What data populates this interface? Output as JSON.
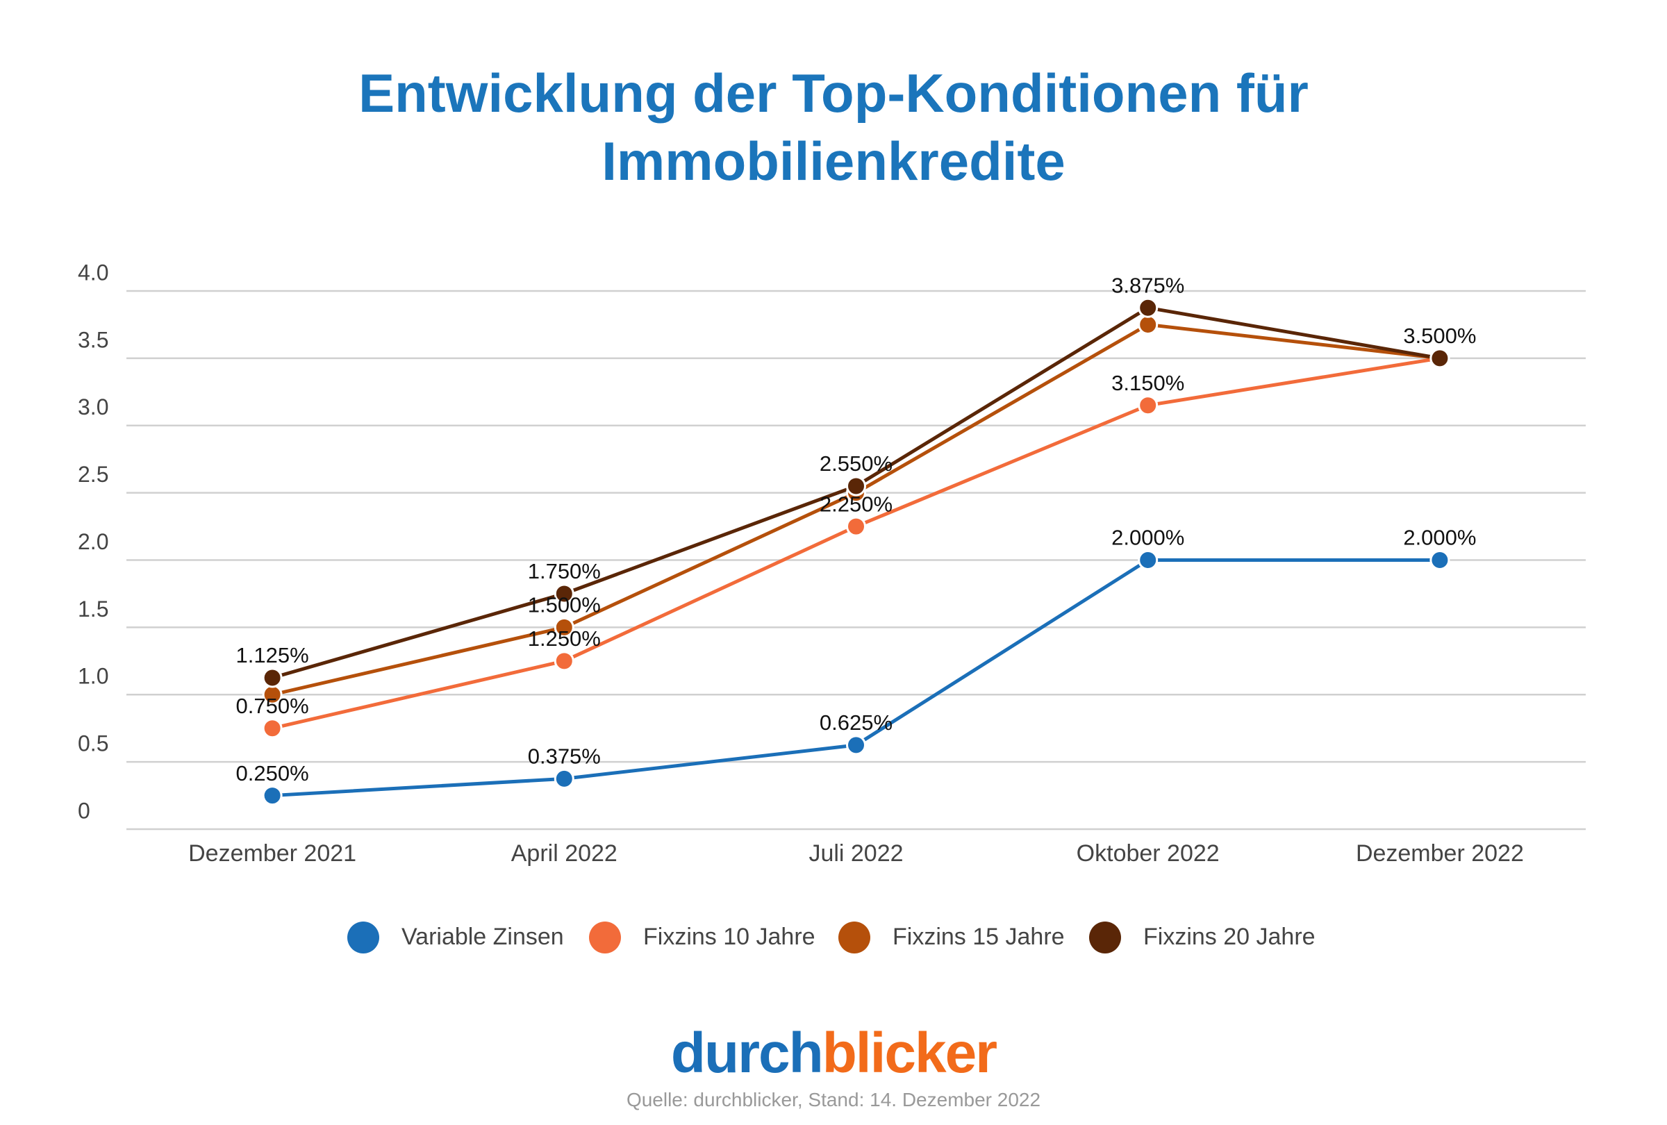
{
  "chart_data": {
    "type": "line",
    "title": "Entwicklung der Top-Konditionen für Immobilienkredite",
    "categories": [
      "Dezember 2021",
      "April 2022",
      "Juli 2022",
      "Oktober 2022",
      "Dezember 2022"
    ],
    "series": [
      {
        "name": "Variable Zinsen",
        "color": "#1b6fb8",
        "values": [
          0.25,
          0.375,
          0.625,
          2.0,
          2.0
        ],
        "value_labels": [
          "0.250%",
          "0.375%",
          "0.625%",
          "2.000%",
          "2.000%"
        ]
      },
      {
        "name": "Fixzins 10 Jahre",
        "color": "#f26b3a",
        "values": [
          0.75,
          1.25,
          2.25,
          3.15,
          3.5
        ],
        "value_labels": [
          "0.750%",
          "1.250%",
          "2.250%",
          "3.150%",
          null
        ]
      },
      {
        "name": "Fixzins 15 Jahre",
        "color": "#b5500b",
        "values": [
          1.0,
          1.5,
          2.5,
          3.75,
          3.5
        ],
        "value_labels": [
          null,
          "1.500%",
          null,
          null,
          null
        ]
      },
      {
        "name": "Fixzins 20 Jahre",
        "color": "#5a2607",
        "values": [
          1.125,
          1.75,
          2.55,
          3.875,
          3.5
        ],
        "value_labels": [
          "1.125%",
          "1.750%",
          "2.550%",
          "3.875%",
          "3.500%"
        ]
      }
    ],
    "ylim": [
      0,
      4
    ],
    "yticks": [
      0,
      0.5,
      {
        "value": 1,
        "label": "1.0"
      },
      1.5,
      {
        "value": 2,
        "label": "2.0"
      },
      2.5,
      {
        "value": 3,
        "label": "3.0"
      },
      3.5,
      {
        "value": 4,
        "label": "4.0"
      }
    ],
    "grid": true,
    "legend": "bottom"
  },
  "brand": {
    "parts": [
      "durch",
      "blicker"
    ]
  },
  "source": "Quelle: durchblicker, Stand: 14. Dezember 2022"
}
